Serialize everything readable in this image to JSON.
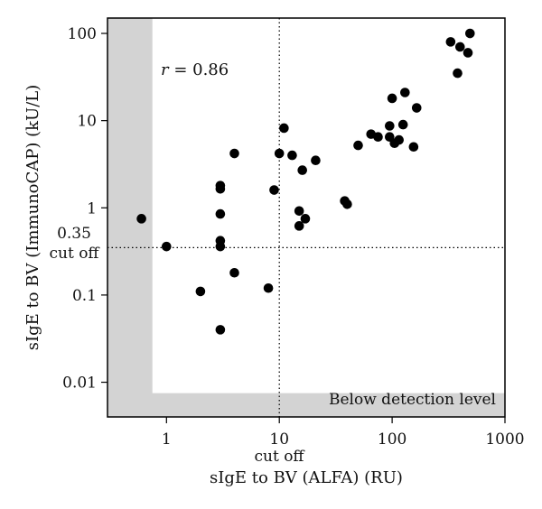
{
  "chart_data": {
    "type": "scatter",
    "xlabel": "sIgE to BV (ALFA) (RU)",
    "ylabel": "sIgE to BV (ImmunoCAP) (kU/L)",
    "x_scale": "log",
    "y_scale": "log",
    "xlim": [
      0.3,
      1000
    ],
    "ylim": [
      0.004,
      150
    ],
    "x_ticks": [
      {
        "value": 1,
        "label": "1"
      },
      {
        "value": 10,
        "label": "10"
      },
      {
        "value": 100,
        "label": "100"
      },
      {
        "value": 1000,
        "label": "1000"
      }
    ],
    "y_ticks": [
      {
        "value": 0.01,
        "label": "0.01"
      },
      {
        "value": 0.1,
        "label": "0.1"
      },
      {
        "value": 1,
        "label": "1"
      },
      {
        "value": 10,
        "label": "10"
      },
      {
        "value": 100,
        "label": "100"
      }
    ],
    "x_cutoff": {
      "value": 10,
      "label": "cut off"
    },
    "y_cutoff": {
      "value": 0.35,
      "value_label": "0.35",
      "label": "cut off"
    },
    "annotation_r": {
      "symbol": "r",
      "text": " = 0.86"
    },
    "below_detection": {
      "label": "Below detection level",
      "x_below": 0.75,
      "y_below": 0.0075,
      "color": "#d3d3d3"
    },
    "grid": false,
    "legend": "none",
    "points": [
      {
        "x": 0.6,
        "y": 0.75
      },
      {
        "x": 1.0,
        "y": 0.36
      },
      {
        "x": 2.0,
        "y": 0.11
      },
      {
        "x": 3.0,
        "y": 1.8
      },
      {
        "x": 3.0,
        "y": 1.65
      },
      {
        "x": 3.0,
        "y": 0.85
      },
      {
        "x": 3.0,
        "y": 0.42
      },
      {
        "x": 3.0,
        "y": 0.36
      },
      {
        "x": 3.0,
        "y": 0.04
      },
      {
        "x": 4.0,
        "y": 4.2
      },
      {
        "x": 4.0,
        "y": 0.18
      },
      {
        "x": 8.0,
        "y": 0.12
      },
      {
        "x": 9.0,
        "y": 1.6
      },
      {
        "x": 10.0,
        "y": 4.2
      },
      {
        "x": 11.0,
        "y": 8.2
      },
      {
        "x": 13.0,
        "y": 4.0
      },
      {
        "x": 15.0,
        "y": 0.92
      },
      {
        "x": 15.0,
        "y": 0.62
      },
      {
        "x": 16.0,
        "y": 2.7
      },
      {
        "x": 17.0,
        "y": 0.75
      },
      {
        "x": 21.0,
        "y": 3.5
      },
      {
        "x": 38.0,
        "y": 1.2
      },
      {
        "x": 40.0,
        "y": 1.1
      },
      {
        "x": 50.0,
        "y": 5.2
      },
      {
        "x": 65.0,
        "y": 7.0
      },
      {
        "x": 75.0,
        "y": 6.5
      },
      {
        "x": 95.0,
        "y": 8.7
      },
      {
        "x": 95.0,
        "y": 6.5
      },
      {
        "x": 100.0,
        "y": 18.0
      },
      {
        "x": 105.0,
        "y": 5.5
      },
      {
        "x": 115.0,
        "y": 6.0
      },
      {
        "x": 125.0,
        "y": 9.0
      },
      {
        "x": 130.0,
        "y": 21.0
      },
      {
        "x": 155.0,
        "y": 5.0
      },
      {
        "x": 165.0,
        "y": 14.0
      },
      {
        "x": 330.0,
        "y": 80.0
      },
      {
        "x": 380.0,
        "y": 35.0
      },
      {
        "x": 400.0,
        "y": 70.0
      },
      {
        "x": 470.0,
        "y": 60.0
      },
      {
        "x": 490.0,
        "y": 100.0
      }
    ]
  }
}
